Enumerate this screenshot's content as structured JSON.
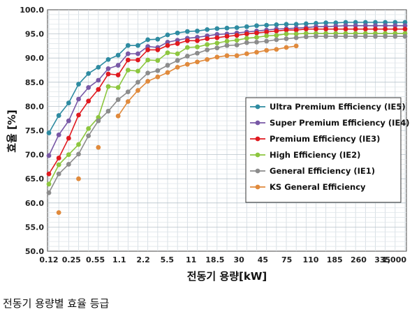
{
  "caption": "전동기 용량별 효율 등급",
  "chart_data": {
    "type": "line",
    "title": "",
    "xlabel": "전동기 용량[kW]",
    "ylabel": "효율 [%]",
    "ylim": [
      50,
      100
    ],
    "yticks": [
      "50.0",
      "55.0",
      "60.0",
      "65.0",
      "70.0",
      "75.0",
      "80.0",
      "85.0",
      "90.0",
      "95.0",
      "100.0"
    ],
    "xticks": [
      "0.12",
      "0.25",
      "0.55",
      "1.1",
      "2.2",
      "5.5",
      "11",
      "18.5",
      "30",
      "45",
      "75",
      "110",
      "185",
      "260",
      "335",
      "1,000"
    ],
    "grid": true,
    "legend_position": "center-right",
    "x": [
      "0.12",
      "0.18",
      "0.2",
      "0.25",
      "0.37",
      "0.4",
      "0.55",
      "0.75",
      "1.1",
      "1.5",
      "2.2",
      "3",
      "4",
      "5.5",
      "7.5",
      "11",
      "15",
      "18.5",
      "22",
      "30",
      "37",
      "45",
      "55",
      "75",
      "90",
      "110",
      "132",
      "160",
      "185",
      "200",
      "220",
      "250",
      "260",
      "300",
      "335",
      "375",
      "1,000"
    ],
    "series": [
      {
        "name": "Ultra Premium Efficiency (IE5)",
        "color": "#2e8ba1",
        "values": [
          74.5,
          78.1,
          80.7,
          84.6,
          86.8,
          88.1,
          89.7,
          90.6,
          92.6,
          92.6,
          93.8,
          93.9,
          94.8,
          95.2,
          95.5,
          95.6,
          95.9,
          96.1,
          96.2,
          96.3,
          96.5,
          96.7,
          96.8,
          96.9,
          97.0,
          97.0,
          97.1,
          97.2,
          97.3,
          97.3,
          97.4,
          97.4,
          97.4,
          97.4,
          97.4,
          97.4,
          97.4
        ]
      },
      {
        "name": "Super Premium Efficiency (IE4)",
        "color": "#7858a6",
        "values": [
          69.8,
          74.1,
          77.0,
          81.5,
          83.9,
          85.4,
          87.8,
          88.5,
          90.9,
          90.9,
          92.4,
          92.2,
          93.3,
          93.7,
          94.1,
          94.3,
          94.6,
          94.9,
          95.0,
          95.2,
          95.4,
          95.6,
          95.8,
          96.0,
          96.1,
          96.2,
          96.3,
          96.5,
          96.5,
          96.6,
          96.7,
          96.7,
          96.7,
          96.7,
          96.7,
          96.7,
          96.7
        ]
      },
      {
        "name": "Premium Efficiency (IE3)",
        "color": "#e0191f",
        "values": [
          66.0,
          69.3,
          73.4,
          78.2,
          81.1,
          83.5,
          86.7,
          86.5,
          89.6,
          89.6,
          91.7,
          91.7,
          92.6,
          93.0,
          93.6,
          93.6,
          94.0,
          94.2,
          94.5,
          94.7,
          95.0,
          95.2,
          95.4,
          95.6,
          95.8,
          95.8,
          96.0,
          96.0,
          96.0,
          96.0,
          96.0,
          96.0,
          96.0,
          96.0,
          96.0,
          96.0,
          96.0
        ]
      },
      {
        "name": "High Efficiency (IE2)",
        "color": "#8dc63f",
        "values": [
          63.9,
          67.9,
          70.0,
          72.1,
          75.4,
          77.7,
          84.1,
          83.9,
          87.5,
          87.3,
          89.6,
          89.5,
          91.1,
          90.9,
          92.2,
          92.3,
          92.8,
          93.1,
          93.5,
          93.7,
          94.1,
          94.3,
          94.6,
          94.7,
          95.0,
          95.0,
          95.1,
          95.1,
          95.1,
          95.1,
          95.1,
          95.1,
          95.1,
          95.1,
          95.1,
          95.1,
          95.1
        ]
      },
      {
        "name": "General Efficiency (IE1)",
        "color": "#8c8c8c",
        "values": [
          62.1,
          66.0,
          68.0,
          70.1,
          73.9,
          77.0,
          79.0,
          81.4,
          83.0,
          85.0,
          86.9,
          87.4,
          88.5,
          89.5,
          90.4,
          91.0,
          91.7,
          92.1,
          92.6,
          92.7,
          93.2,
          93.3,
          93.5,
          93.8,
          94.0,
          94.2,
          94.4,
          94.5,
          94.5,
          94.5,
          94.5,
          94.5,
          94.5,
          94.5,
          94.5,
          94.5,
          94.5
        ]
      },
      {
        "name": "KS General Efficiency",
        "color": "#e08a3c",
        "values": [
          null,
          58.0,
          null,
          65.0,
          null,
          71.5,
          null,
          78.0,
          81.0,
          83.3,
          85.2,
          86.1,
          87.0,
          88.1,
          88.7,
          89.2,
          89.7,
          90.2,
          90.5,
          90.5,
          90.9,
          91.2,
          91.6,
          91.8,
          92.2,
          92.5,
          null,
          null,
          null,
          null,
          null,
          null,
          null,
          null,
          null,
          null,
          null
        ]
      }
    ]
  }
}
